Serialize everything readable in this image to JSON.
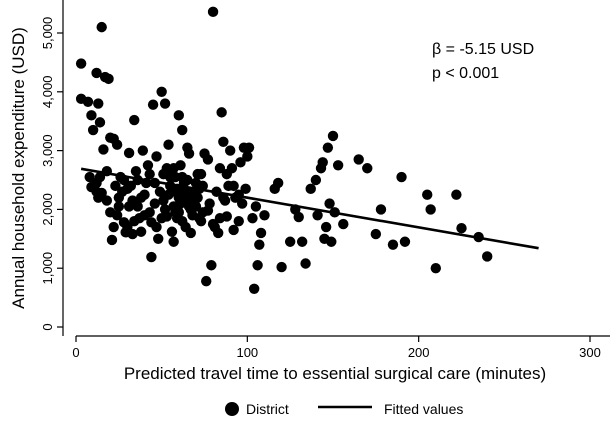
{
  "chart_data": {
    "type": "scatter",
    "xlabel": "Predicted travel time to essential surgical care (minutes)",
    "ylabel": "Annual household expenditure (USD)",
    "xlim": [
      -5,
      305
    ],
    "ylim": [
      -150,
      5450
    ],
    "x_ticks": [
      0,
      100,
      200,
      300
    ],
    "x_tick_labels": [
      "0",
      "100",
      "200",
      "300"
    ],
    "y_ticks": [
      0,
      1000,
      2000,
      3000,
      4000,
      5000
    ],
    "y_tick_labels": [
      "0",
      "1,000",
      "2,000",
      "3,000",
      "4,000",
      "5,000"
    ],
    "annotation_lines": [
      "β = -5.15 USD",
      "p < 0.001"
    ],
    "legend": {
      "position": "bottom",
      "entries": [
        {
          "label": "District",
          "marker": "dot"
        },
        {
          "label": "Fitted values",
          "marker": "line"
        }
      ]
    },
    "fitted_line": {
      "x": [
        3,
        270
      ],
      "y": [
        2690,
        1340
      ]
    },
    "series": [
      {
        "name": "District",
        "points": [
          [
            3,
            4480
          ],
          [
            3,
            3880
          ],
          [
            7,
            3830
          ],
          [
            9,
            3600
          ],
          [
            12,
            4320
          ],
          [
            13,
            3800
          ],
          [
            14,
            3480
          ],
          [
            15,
            5100
          ],
          [
            17,
            4250
          ],
          [
            10,
            3350
          ],
          [
            8,
            2550
          ],
          [
            9,
            2380
          ],
          [
            12,
            2450
          ],
          [
            13,
            2200
          ],
          [
            15,
            2280
          ],
          [
            16,
            3020
          ],
          [
            19,
            4220
          ],
          [
            20,
            3220
          ],
          [
            22,
            3200
          ],
          [
            24,
            3100
          ],
          [
            18,
            2150
          ],
          [
            20,
            1950
          ],
          [
            21,
            1480
          ],
          [
            22,
            1700
          ],
          [
            24,
            1900
          ],
          [
            25,
            2200
          ],
          [
            26,
            2550
          ],
          [
            28,
            1780
          ],
          [
            29,
            1610
          ],
          [
            30,
            2350
          ],
          [
            31,
            2960
          ],
          [
            32,
            2400
          ],
          [
            33,
            2150
          ],
          [
            34,
            3520
          ],
          [
            35,
            2650
          ],
          [
            36,
            2050
          ],
          [
            37,
            1850
          ],
          [
            38,
            1620
          ],
          [
            39,
            3000
          ],
          [
            40,
            2250
          ],
          [
            42,
            2750
          ],
          [
            43,
            1950
          ],
          [
            44,
            1780
          ],
          [
            45,
            3780
          ],
          [
            46,
            2450
          ],
          [
            47,
            2900
          ],
          [
            48,
            1500
          ],
          [
            44,
            1190
          ],
          [
            50,
            1850
          ],
          [
            51,
            2150
          ],
          [
            50,
            4000
          ],
          [
            52,
            3800
          ],
          [
            53,
            2700
          ],
          [
            54,
            3100
          ],
          [
            55,
            2400
          ],
          [
            56,
            1620
          ],
          [
            57,
            1450
          ],
          [
            58,
            1950
          ],
          [
            59,
            2350
          ],
          [
            60,
            2200
          ],
          [
            55,
            2550
          ],
          [
            61,
            2750
          ],
          [
            62,
            3350
          ],
          [
            63,
            2300
          ],
          [
            64,
            2150
          ],
          [
            65,
            2500
          ],
          [
            66,
            2050
          ],
          [
            67,
            1600
          ],
          [
            68,
            1900
          ],
          [
            69,
            2250
          ],
          [
            60,
            3600
          ],
          [
            65,
            3050
          ],
          [
            66,
            2950
          ],
          [
            70,
            2450
          ],
          [
            71,
            2200
          ],
          [
            72,
            2350
          ],
          [
            73,
            1800
          ],
          [
            74,
            1950
          ],
          [
            75,
            2950
          ],
          [
            77,
            2850
          ],
          [
            76,
            780
          ],
          [
            77,
            1980
          ],
          [
            79,
            1050
          ],
          [
            80,
            5360
          ],
          [
            81,
            1700
          ],
          [
            82,
            2300
          ],
          [
            83,
            1600
          ],
          [
            84,
            2700
          ],
          [
            85,
            3650
          ],
          [
            86,
            3150
          ],
          [
            87,
            2150
          ],
          [
            88,
            1880
          ],
          [
            89,
            2400
          ],
          [
            90,
            3000
          ],
          [
            91,
            2700
          ],
          [
            92,
            1650
          ],
          [
            93,
            2200
          ],
          [
            95,
            2250
          ],
          [
            96,
            2800
          ],
          [
            98,
            3050
          ],
          [
            99,
            2350
          ],
          [
            100,
            2900
          ],
          [
            101,
            3050
          ],
          [
            103,
            1850
          ],
          [
            104,
            650
          ],
          [
            105,
            2050
          ],
          [
            106,
            1050
          ],
          [
            107,
            1400
          ],
          [
            108,
            1600
          ],
          [
            110,
            1900
          ],
          [
            116,
            2350
          ],
          [
            118,
            2450
          ],
          [
            120,
            1020
          ],
          [
            125,
            1450
          ],
          [
            128,
            2000
          ],
          [
            130,
            1870
          ],
          [
            132,
            1450
          ],
          [
            134,
            1080
          ],
          [
            137,
            2350
          ],
          [
            140,
            2500
          ],
          [
            141,
            1900
          ],
          [
            143,
            2700
          ],
          [
            144,
            2800
          ],
          [
            145,
            1500
          ],
          [
            146,
            1700
          ],
          [
            147,
            3050
          ],
          [
            148,
            2100
          ],
          [
            149,
            1450
          ],
          [
            150,
            3250
          ],
          [
            151,
            1950
          ],
          [
            153,
            2750
          ],
          [
            156,
            1750
          ],
          [
            165,
            2850
          ],
          [
            170,
            2700
          ],
          [
            175,
            1580
          ],
          [
            178,
            2000
          ],
          [
            185,
            1400
          ],
          [
            190,
            2550
          ],
          [
            192,
            1450
          ],
          [
            205,
            2250
          ],
          [
            207,
            2000
          ],
          [
            210,
            1000
          ],
          [
            222,
            2250
          ],
          [
            225,
            1680
          ],
          [
            235,
            1530
          ],
          [
            240,
            1200
          ],
          [
            25,
            2050
          ],
          [
            27,
            2300
          ],
          [
            30,
            1700
          ],
          [
            33,
            1580
          ],
          [
            36,
            2500
          ],
          [
            40,
            1900
          ],
          [
            41,
            2450
          ],
          [
            46,
            2100
          ],
          [
            49,
            2300
          ],
          [
            52,
            2000
          ],
          [
            53,
            1880
          ],
          [
            56,
            2300
          ],
          [
            57,
            2050
          ],
          [
            58,
            2550
          ],
          [
            59,
            1850
          ],
          [
            61,
            2100
          ],
          [
            62,
            1800
          ],
          [
            63,
            2450
          ],
          [
            64,
            1700
          ],
          [
            66,
            2300
          ],
          [
            68,
            2150
          ],
          [
            70,
            2050
          ],
          [
            72,
            1850
          ],
          [
            73,
            2600
          ],
          [
            74,
            2400
          ],
          [
            78,
            2100
          ],
          [
            80,
            1750
          ],
          [
            84,
            1850
          ],
          [
            86,
            2200
          ],
          [
            92,
            2400
          ],
          [
            95,
            1800
          ],
          [
            97,
            2100
          ],
          [
            12,
            2300
          ],
          [
            14,
            2550
          ],
          [
            18,
            2650
          ],
          [
            23,
            2400
          ],
          [
            28,
            2500
          ],
          [
            31,
            2050
          ],
          [
            34,
            1800
          ],
          [
            38,
            2200
          ],
          [
            43,
            2600
          ],
          [
            47,
            1700
          ],
          [
            51,
            2600
          ],
          [
            54,
            2250
          ],
          [
            57,
            2700
          ],
          [
            60,
            1950
          ],
          [
            62,
            2550
          ],
          [
            67,
            2000
          ],
          [
            71,
            2600
          ],
          [
            88,
            2600
          ]
        ]
      }
    ]
  },
  "colors": {
    "marker": "#000000",
    "line": "#000000",
    "background": "#ffffff"
  }
}
